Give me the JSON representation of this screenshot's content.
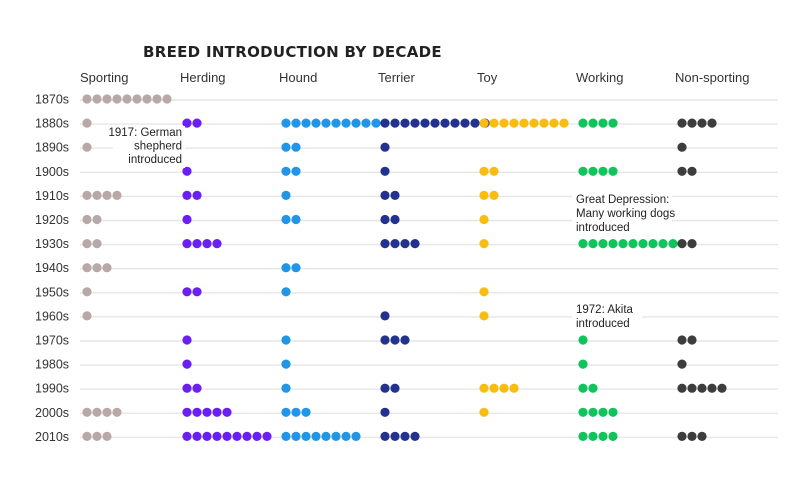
{
  "chart_data": {
    "type": "dot-matrix",
    "title": "BREED INTRODUCTION BY DECADE",
    "groups": [
      "Sporting",
      "Herding",
      "Hound",
      "Terrier",
      "Toy",
      "Working",
      "Non-sporting"
    ],
    "decades": [
      "1870s",
      "1880s",
      "1890s",
      "1900s",
      "1910s",
      "1920s",
      "1930s",
      "1940s",
      "1950s",
      "1960s",
      "1970s",
      "1980s",
      "1990s",
      "2000s",
      "2010s"
    ],
    "series": [
      {
        "name": "Sporting",
        "color": "#b8a9a8",
        "values": [
          9,
          1,
          1,
          0,
          4,
          2,
          2,
          3,
          1,
          1,
          0,
          0,
          0,
          4,
          3
        ]
      },
      {
        "name": "Herding",
        "color": "#6a1ff5",
        "values": [
          0,
          2,
          0,
          1,
          2,
          1,
          4,
          0,
          2,
          0,
          1,
          1,
          2,
          5,
          9
        ]
      },
      {
        "name": "Hound",
        "color": "#2196e8",
        "values": [
          0,
          10,
          2,
          2,
          1,
          2,
          0,
          2,
          1,
          0,
          1,
          1,
          1,
          3,
          8
        ]
      },
      {
        "name": "Terrier",
        "color": "#24328f",
        "values": [
          0,
          11,
          1,
          1,
          2,
          2,
          4,
          0,
          0,
          1,
          3,
          0,
          2,
          1,
          4
        ]
      },
      {
        "name": "Toy",
        "color": "#f8bd10",
        "values": [
          0,
          9,
          0,
          2,
          2,
          1,
          1,
          0,
          1,
          1,
          0,
          0,
          4,
          1,
          0
        ]
      },
      {
        "name": "Working",
        "color": "#0fc45a",
        "values": [
          0,
          4,
          0,
          4,
          0,
          0,
          10,
          0,
          0,
          0,
          1,
          1,
          2,
          4,
          4
        ]
      },
      {
        "name": "Non-sporting",
        "color": "#3d3d3d",
        "values": [
          0,
          4,
          1,
          2,
          0,
          0,
          2,
          0,
          0,
          0,
          2,
          1,
          5,
          0,
          3
        ]
      }
    ],
    "annotations": [
      {
        "lines": [
          "1917: German",
          "shepherd",
          "introduced"
        ]
      },
      {
        "lines": [
          "Great Depression:",
          "Many working dogs",
          "introduced"
        ]
      },
      {
        "lines": [
          "1972: Akita",
          "introduced"
        ]
      }
    ]
  }
}
